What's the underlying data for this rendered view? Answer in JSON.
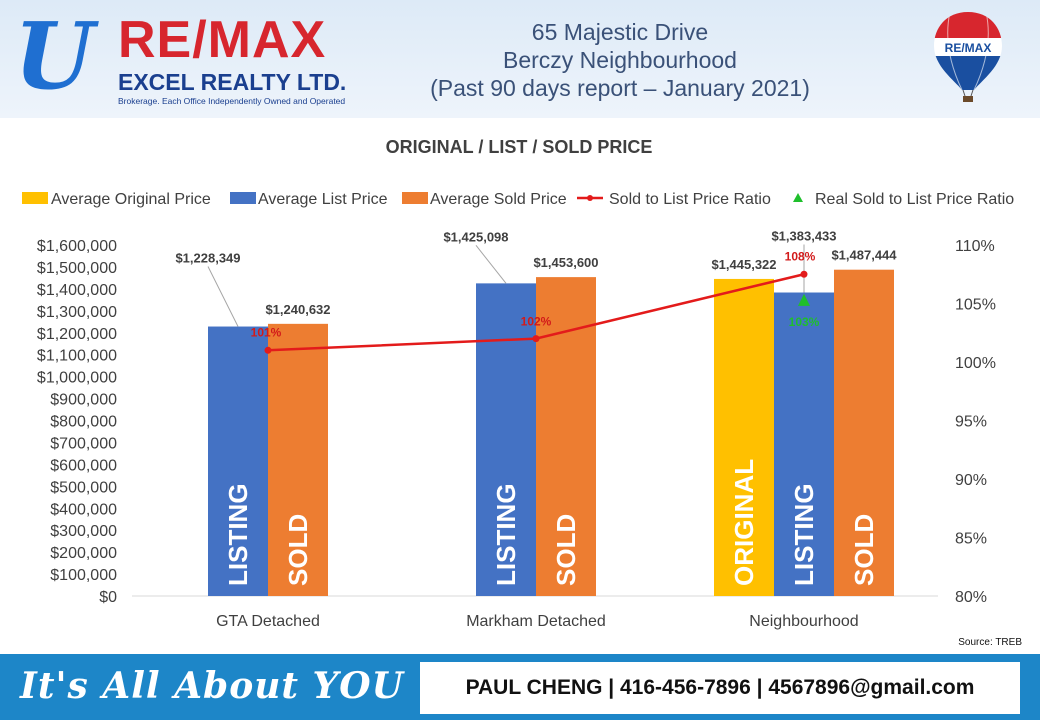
{
  "header": {
    "logo": {
      "letter": "U",
      "brand": "RE/MAX",
      "company": "EXCEL REALTY LTD.",
      "tagline": "Brokerage. Each Office Independently Owned and Operated"
    },
    "title_lines": [
      "65 Majestic Drive",
      "Berczy Neighbourhood",
      "(Past 90 days report – January 2021)"
    ],
    "balloon_text": "RE/MAX"
  },
  "chart_data": {
    "type": "bar",
    "title": "ORIGINAL / LIST / SOLD PRICE",
    "categories": [
      "GTA Detached",
      "Markham Detached",
      "Neighbourhood"
    ],
    "series": [
      {
        "name": "Average Original Price",
        "color": "#ffc000",
        "values": [
          null,
          null,
          1445322
        ],
        "labels": [
          "",
          "",
          "$1,445,322"
        ],
        "bar_text": [
          "",
          "",
          "ORIGINAL"
        ]
      },
      {
        "name": "Average List Price",
        "color": "#4472c4",
        "values": [
          1228349,
          1425098,
          1383433
        ],
        "labels": [
          "$1,228,349",
          "$1,425,098",
          "$1,383,433"
        ],
        "bar_text": [
          "LISTING",
          "LISTING",
          "LISTING"
        ]
      },
      {
        "name": "Average Sold Price",
        "color": "#ed7d31",
        "values": [
          1240632,
          1453600,
          1487444
        ],
        "labels": [
          "$1,240,632",
          "$1,453,600",
          "$1,487,444"
        ],
        "bar_text": [
          "SOLD",
          "SOLD",
          "SOLD"
        ]
      }
    ],
    "line_series": [
      {
        "name": "Sold to List Price Ratio",
        "color": "#e31b1b",
        "axis": "right",
        "values": [
          101,
          102,
          107.5
        ],
        "labels": [
          "101%",
          "102%",
          "108%"
        ]
      },
      {
        "name": "Real Sold to List Price Ratio",
        "color": "#1fbf2c",
        "axis": "right",
        "marker": "triangle",
        "values": [
          null,
          null,
          null
        ],
        "labels": [
          "",
          "",
          "103%"
        ]
      }
    ],
    "y_left": {
      "min": 0,
      "max": 1600000,
      "step": 100000,
      "ticks": [
        "$0",
        "$100,000",
        "$200,000",
        "$300,000",
        "$400,000",
        "$500,000",
        "$600,000",
        "$700,000",
        "$800,000",
        "$900,000",
        "$1,000,000",
        "$1,100,000",
        "$1,200,000",
        "$1,300,000",
        "$1,400,000",
        "$1,500,000",
        "$1,600,000"
      ]
    },
    "y_right": {
      "min": 80,
      "max": 110,
      "step": 5,
      "ticks": [
        "80%",
        "85%",
        "90%",
        "95%",
        "100%",
        "105%",
        "110%"
      ]
    },
    "grid": false,
    "legend": "top",
    "source": "Source: TREB"
  },
  "footer": {
    "slogan": "It's All About YOU",
    "contact": "PAUL CHENG | 416-456-7896 | 4567896@gmail.com"
  }
}
